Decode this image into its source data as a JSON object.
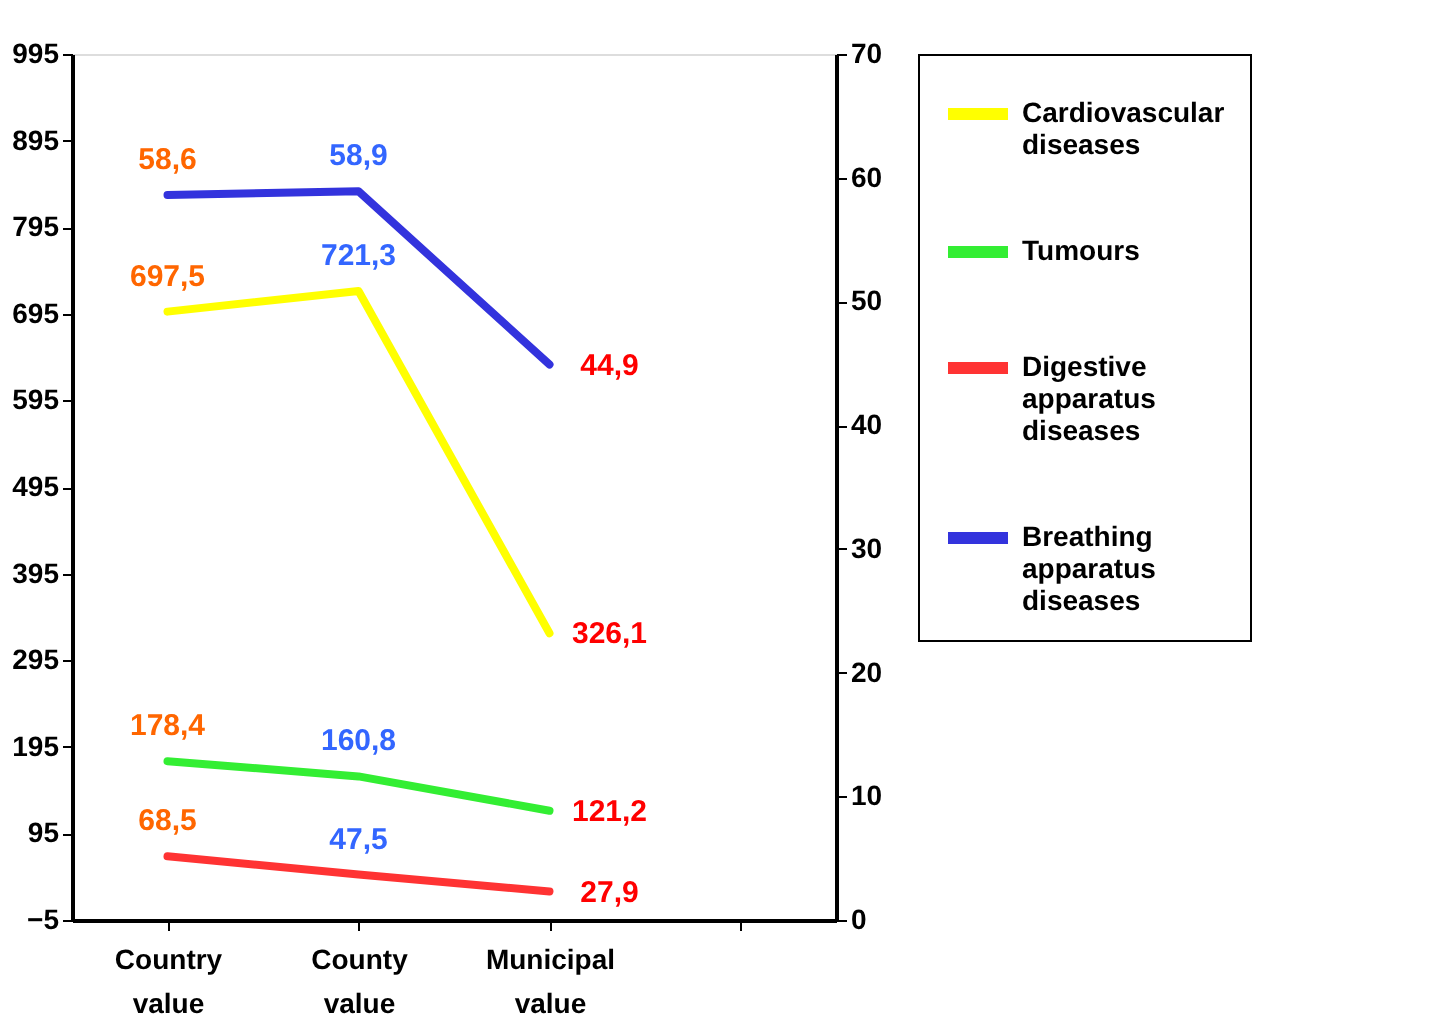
{
  "chart_data": {
    "type": "line",
    "categories": [
      "Country value",
      "County value",
      "Municipal value",
      null
    ],
    "series": [
      {
        "name": "Cardiovascular diseases",
        "color": "#ffff00",
        "values": [
          697.5,
          721.3,
          326.1,
          null
        ],
        "value_labels": [
          "697,5",
          "721,3",
          "326,1",
          null
        ]
      },
      {
        "name": "Tumours",
        "color": "#33ee33",
        "values": [
          178.4,
          160.8,
          121.2,
          null
        ],
        "value_labels": [
          "178,4",
          "160,8",
          "121,2",
          null
        ]
      },
      {
        "name": "Digestive apparatus diseases",
        "color": "#ff3333",
        "values": [
          68.5,
          47.5,
          27.9,
          null
        ],
        "value_labels": [
          "68,5",
          "47,5",
          "27,9",
          null
        ]
      },
      {
        "name": "Breathing apparatus diseases",
        "color": "#3333dd",
        "axis": "y2",
        "values": [
          58.6,
          58.9,
          44.9,
          null
        ],
        "value_labels": [
          "58,6",
          "58,9",
          "44,9",
          null
        ]
      }
    ],
    "ylim": [
      -5,
      995
    ],
    "yticks": [
      -5,
      95,
      195,
      295,
      395,
      495,
      595,
      695,
      795,
      895,
      995
    ],
    "y2lim": [
      0,
      70
    ],
    "y2ticks": [
      0,
      10,
      20,
      30,
      40,
      50,
      60,
      70
    ],
    "grid": false,
    "legend": "top right",
    "marker": "none",
    "line_style": "solid"
  }
}
